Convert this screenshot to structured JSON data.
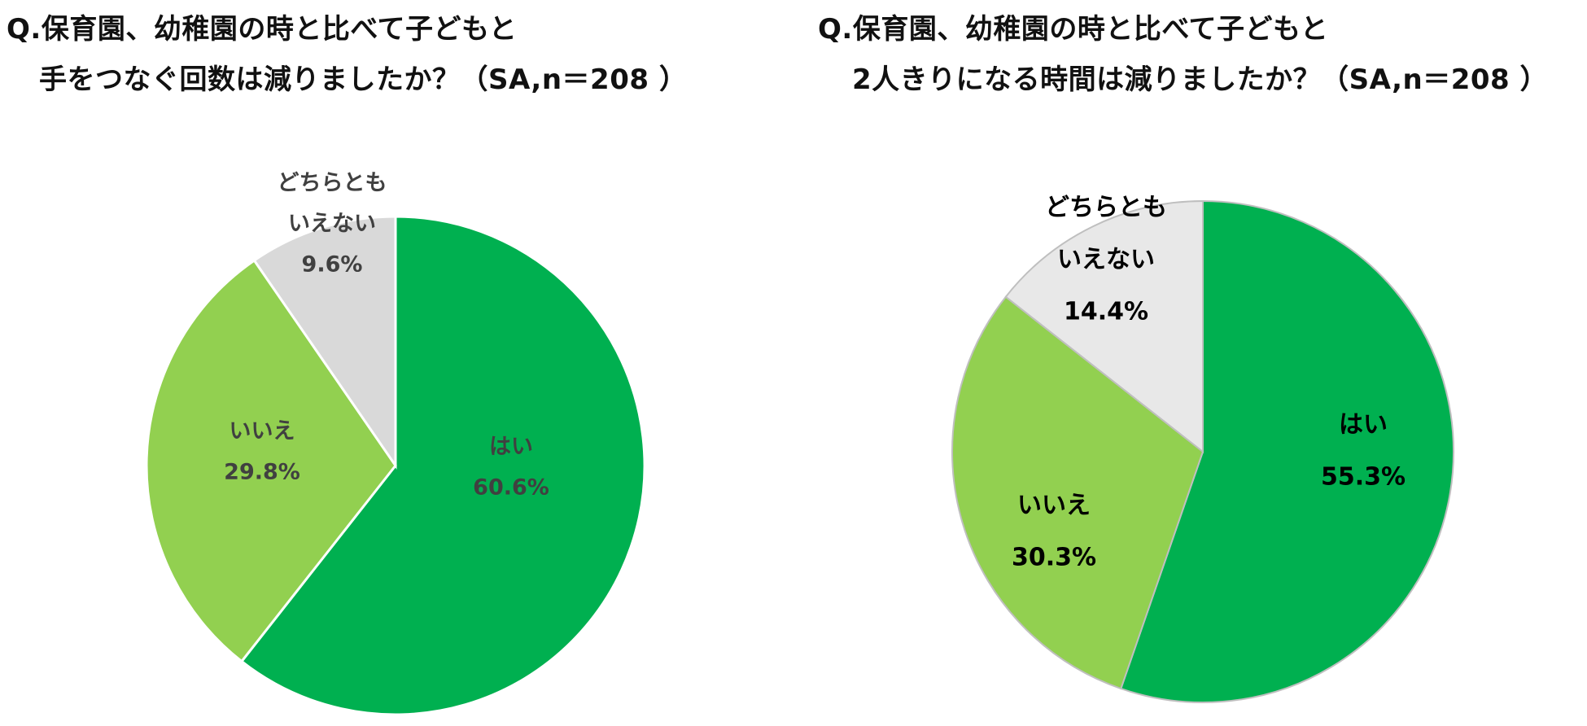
{
  "chart_data": [
    {
      "type": "pie",
      "title_line1": "Q.保育園、幼稚園の時と比べて子どもと",
      "title_line2": "手をつなぐ回数は減りましたか？（SA,n＝208 ）",
      "slices": [
        {
          "label": "はい",
          "label_lines": [
            "はい"
          ],
          "value": 60.6,
          "display": "60.6%",
          "color": "#00B050",
          "text_color": "#404040"
        },
        {
          "label": "いいえ",
          "label_lines": [
            "いいえ"
          ],
          "value": 29.8,
          "display": "29.8%",
          "color": "#92D050",
          "text_color": "#404040"
        },
        {
          "label": "どちらともいえない",
          "label_lines": [
            "どちらとも",
            "いえない"
          ],
          "value": 9.6,
          "display": "9.6%",
          "color": "#D9D9D9",
          "text_color": "#404040"
        }
      ]
    },
    {
      "type": "pie",
      "title_line1": "Q.保育園、幼稚園の時と比べて子どもと",
      "title_line2": "2人きりになる時間は減りましたか？（SA,n＝208 ）",
      "slices": [
        {
          "label": "はい",
          "label_lines": [
            "はい"
          ],
          "value": 55.3,
          "display": "55.3%",
          "color": "#00B050",
          "text_color": "#000000"
        },
        {
          "label": "いいえ",
          "label_lines": [
            "いいえ"
          ],
          "value": 30.3,
          "display": "30.3%",
          "color": "#92D050",
          "text_color": "#000000"
        },
        {
          "label": "どちらともいえない",
          "label_lines": [
            "どちらとも",
            "いえない"
          ],
          "value": 14.4,
          "display": "14.4%",
          "color": "#E8E8E8",
          "text_color": "#000000"
        }
      ]
    }
  ]
}
